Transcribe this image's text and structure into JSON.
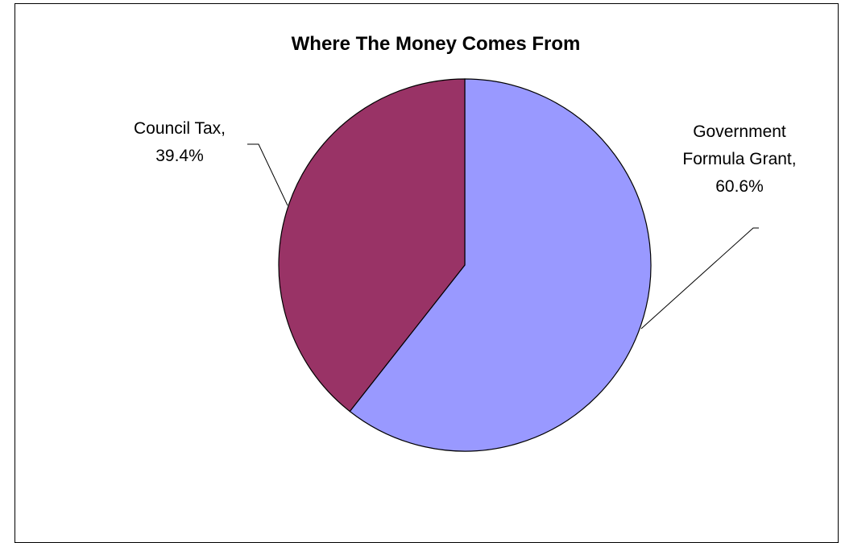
{
  "chart_data": {
    "type": "pie",
    "title": "Where The Money Comes From",
    "slices": [
      {
        "name": "Government Formula Grant",
        "value": 60.6,
        "label_lines": [
          "Government",
          "Formula Grant,",
          "60.6%"
        ],
        "color": "#9999ff"
      },
      {
        "name": "Council Tax",
        "value": 39.4,
        "label_lines": [
          "Council Tax,",
          "39.4%"
        ],
        "color": "#993366"
      }
    ],
    "start_angle": "12 o'clock",
    "direction": "clockwise",
    "legend": "none"
  }
}
